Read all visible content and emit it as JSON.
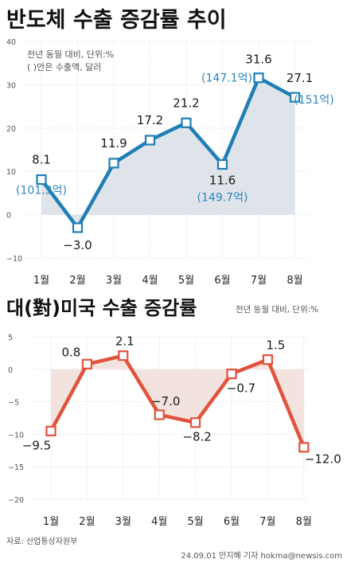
{
  "colors": {
    "background": "#ffffff",
    "title_text": "#111111",
    "axis_text": "#555555",
    "grid": "#d9d9d9",
    "chart1_line": "#1f7fb5",
    "chart1_fill": "#dfe4ea",
    "chart1_note": "#2c86c0",
    "chart2_line": "#e2523c",
    "chart2_fill": "#f2e3de",
    "label_text": "#1a1a1a"
  },
  "chart_data": [
    {
      "type": "line",
      "title": "반도체 수출 증감률 추이",
      "unit_note": "전년 동월 대비, 단위:%",
      "paren_note": "( )안은 수출액, 달러",
      "categories": [
        "1월",
        "2월",
        "3월",
        "4월",
        "5월",
        "6월",
        "7월",
        "8월"
      ],
      "values": [
        8.1,
        -3.0,
        11.9,
        17.2,
        21.2,
        11.6,
        31.6,
        27.1
      ],
      "value_labels": [
        "8.1",
        "−3.0",
        "11.9",
        "17.2",
        "21.2",
        "11.6",
        "31.6",
        "27.1"
      ],
      "export_amounts": [
        {
          "month": "1월",
          "label": "(101.3억)"
        },
        {
          "month": "6월",
          "label": "(149.7억)"
        },
        {
          "month": "7월",
          "label": "(147.1억)"
        },
        {
          "month": "8월",
          "label": "(151억)"
        }
      ],
      "yticks": [
        "40",
        "30",
        "20",
        "10",
        "0",
        "−10"
      ],
      "ylim": [
        -10,
        40
      ],
      "grid": true
    },
    {
      "type": "line",
      "title": "대(對)미국 수출 증감률",
      "unit_note": "전년 동월 대비, 단위:%",
      "categories": [
        "1월",
        "2월",
        "3월",
        "4월",
        "5월",
        "6월",
        "7월",
        "8월"
      ],
      "values": [
        -9.5,
        0.8,
        2.1,
        -7.0,
        -8.2,
        -0.7,
        1.5,
        -12.0
      ],
      "value_labels": [
        "−9.5",
        "0.8",
        "2.1",
        "−7.0",
        "−8.2",
        "−0.7",
        "1.5",
        "−12.0"
      ],
      "yticks": [
        "5",
        "0",
        "−5",
        "−10",
        "−15",
        "−20"
      ],
      "ylim": [
        -20,
        5
      ],
      "grid": true
    }
  ],
  "footer": {
    "source": "자료: 산업통상자원부",
    "credit": "24.09.01 안지혜 기자 hokma@newsis.com"
  }
}
